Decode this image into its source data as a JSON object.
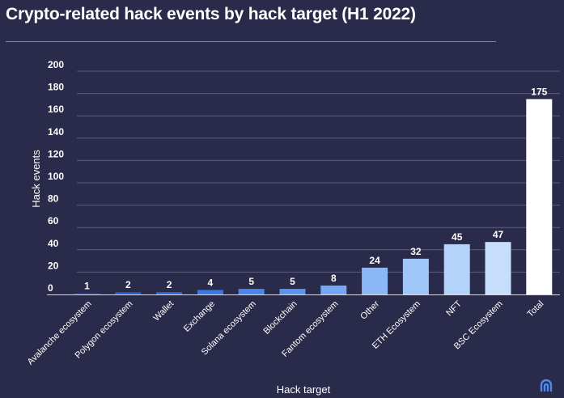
{
  "title": "Crypto-related hack events by hack target (H1 2022)",
  "chart_data": {
    "type": "bar",
    "categories": [
      "Avalanche ecosystem",
      "Polygon ecosystem",
      "Wallet",
      "Exchange",
      "Solana ecosystem",
      "Blockchain",
      "Fantom ecosystem",
      "Other",
      "ETH Ecosystem",
      "NFT",
      "BSC Ecosystem",
      "Total"
    ],
    "values": [
      1,
      2,
      2,
      4,
      5,
      5,
      8,
      24,
      32,
      45,
      47,
      175
    ],
    "colors": [
      "#1556c8",
      "#1e63d6",
      "#2a6fe0",
      "#3779e6",
      "#4a87ec",
      "#5a94f0",
      "#74a8f4",
      "#8ab8f7",
      "#9fc6f9",
      "#b4d3fb",
      "#c6defc",
      "#ffffff"
    ],
    "data_labels": [
      "1",
      "2",
      "2",
      "4",
      "5",
      "5",
      "8",
      "24",
      "32",
      "45",
      "47",
      "175"
    ],
    "yticks": [
      0,
      20,
      40,
      60,
      80,
      100,
      120,
      140,
      160,
      180,
      200
    ],
    "ylim": [
      0,
      200
    ],
    "xlabel": "Hack target",
    "ylabel": "Hack events",
    "grid": true
  },
  "logo_icon": "cointelegraph-logo-icon"
}
